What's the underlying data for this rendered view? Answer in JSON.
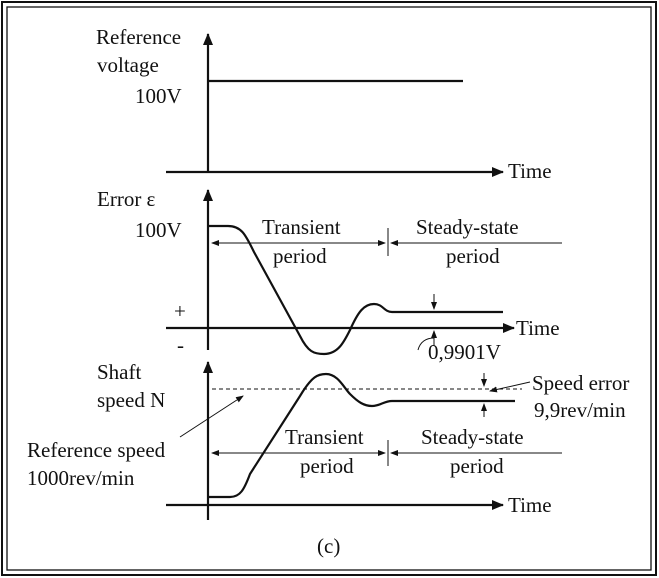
{
  "figure_label": "(c)",
  "panel_reference": {
    "ylabel_line1": "Reference",
    "ylabel_line2": "voltage",
    "level_label": "100V",
    "xlabel": "Time"
  },
  "panel_error": {
    "ylabel": "Error ε",
    "level_label": "100V",
    "transient_line1": "Transient",
    "transient_line2": "period",
    "steady_line1": "Steady-state",
    "steady_line2": "period",
    "plus_sign": "+",
    "minus_sign": "-",
    "xlabel": "Time",
    "steady_error_label": "0,9901V"
  },
  "panel_speed": {
    "ylabel_line1": "Shaft",
    "ylabel_line2": "speed N",
    "speed_error_label": "Speed error",
    "speed_error_value": "9,9rev/min",
    "ref_speed_line1": "Reference speed",
    "ref_speed_line2": "1000rev/min",
    "transient_line1": "Transient",
    "transient_line2": "period",
    "steady_line1": "Steady-state",
    "steady_line2": "period",
    "xlabel": "Time"
  }
}
